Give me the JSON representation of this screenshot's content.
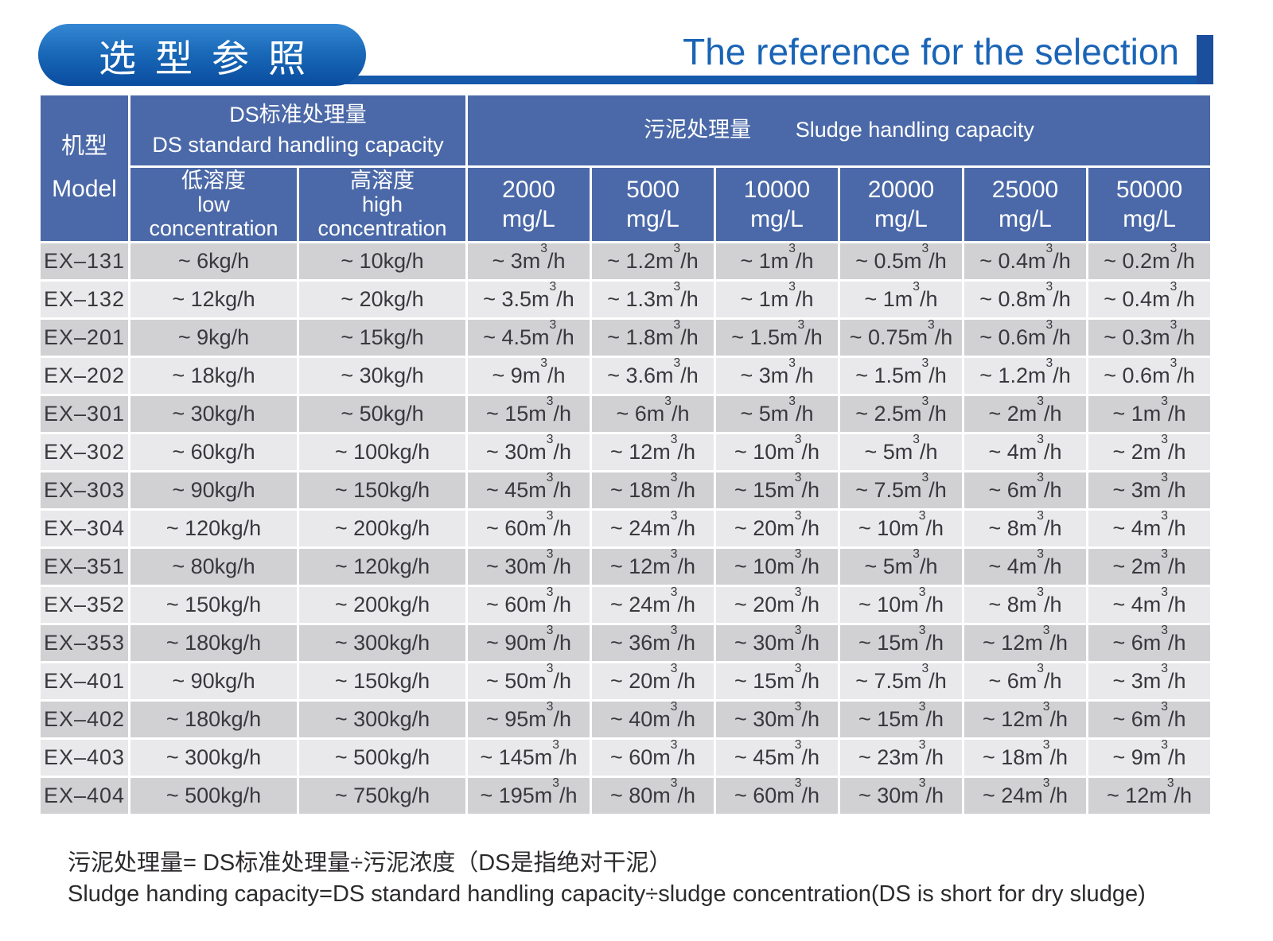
{
  "header": {
    "title_zh": "选型参照",
    "title_en": "The reference for the selection"
  },
  "colors": {
    "table_header_blue": "#4b69a8",
    "row_dark": "#d1d0d3",
    "row_light": "#e9e8ea",
    "title_pill_blue_top": "#3587d3",
    "title_pill_blue_bottom": "#0a4c9f",
    "title_text_blue": "#1a64b6",
    "underline_blue": "#1559ab"
  },
  "table": {
    "header": {
      "model_zh": "机型",
      "model_en": "Model",
      "ds_group_zh": "DS标准处理量",
      "ds_group_en": "DS standard handling capacity",
      "sludge_group_zh": "污泥处理量",
      "sludge_group_en": "Sludge handling capacity",
      "low_zh": "低溶度",
      "low_en_line1": "low",
      "low_en_line2": "concentration",
      "high_zh": "高溶度",
      "high_en_line1": "high",
      "high_en_line2": "concentration",
      "mgl_columns": [
        {
          "value": "2000",
          "unit": "mg/L"
        },
        {
          "value": "5000",
          "unit": "mg/L"
        },
        {
          "value": "10000",
          "unit": "mg/L"
        },
        {
          "value": "20000",
          "unit": "mg/L"
        },
        {
          "value": "25000",
          "unit": "mg/L"
        },
        {
          "value": "50000",
          "unit": "mg/L"
        }
      ]
    },
    "rows": [
      {
        "model": "EX–131",
        "values": [
          "~ 6kg/h",
          "~ 10kg/h",
          "~ 3m³/h",
          "~ 1.2m³/h",
          "~ 1m³/h",
          "~ 0.5m³/h",
          "~ 0.4m³/h",
          "~ 0.2m³/h"
        ]
      },
      {
        "model": "EX–132",
        "values": [
          "~ 12kg/h",
          "~ 20kg/h",
          "~ 3.5m³/h",
          "~ 1.3m³/h",
          "~ 1m³/h",
          "~ 1m³/h",
          "~ 0.8m³/h",
          "~ 0.4m³/h"
        ]
      },
      {
        "model": "EX–201",
        "values": [
          "~ 9kg/h",
          "~ 15kg/h",
          "~ 4.5m³/h",
          "~ 1.8m³/h",
          "~ 1.5m³/h",
          "~ 0.75m³/h",
          "~ 0.6m³/h",
          "~ 0.3m³/h"
        ]
      },
      {
        "model": "EX–202",
        "values": [
          "~ 18kg/h",
          "~ 30kg/h",
          "~ 9m³/h",
          "~ 3.6m³/h",
          "~ 3m³/h",
          "~ 1.5m³/h",
          "~ 1.2m³/h",
          "~ 0.6m³/h"
        ]
      },
      {
        "model": "EX–301",
        "values": [
          "~ 30kg/h",
          "~ 50kg/h",
          "~ 15m³/h",
          "~ 6m³/h",
          "~ 5m³/h",
          "~ 2.5m³/h",
          "~ 2m³/h",
          "~ 1m³/h"
        ]
      },
      {
        "model": "EX–302",
        "values": [
          "~ 60kg/h",
          "~ 100kg/h",
          "~ 30m³/h",
          "~ 12m³/h",
          "~ 10m³/h",
          "~ 5m³/h",
          "~ 4m³/h",
          "~ 2m³/h"
        ]
      },
      {
        "model": "EX–303",
        "values": [
          "~ 90kg/h",
          "~ 150kg/h",
          "~ 45m³/h",
          "~ 18m³/h",
          "~ 15m³/h",
          "~ 7.5m³/h",
          "~ 6m³/h",
          "~ 3m³/h"
        ]
      },
      {
        "model": "EX–304",
        "values": [
          "~ 120kg/h",
          "~ 200kg/h",
          "~ 60m³/h",
          "~ 24m³/h",
          "~ 20m³/h",
          "~ 10m³/h",
          "~ 8m³/h",
          "~ 4m³/h"
        ]
      },
      {
        "model": "EX–351",
        "values": [
          "~ 80kg/h",
          "~ 120kg/h",
          "~ 30m³/h",
          "~ 12m³/h",
          "~ 10m³/h",
          "~ 5m³/h",
          "~ 4m³/h",
          "~ 2m³/h"
        ]
      },
      {
        "model": "EX–352",
        "values": [
          "~ 150kg/h",
          "~ 200kg/h",
          "~ 60m³/h",
          "~ 24m³/h",
          "~ 20m³/h",
          "~ 10m³/h",
          "~ 8m³/h",
          "~ 4m³/h"
        ]
      },
      {
        "model": "EX–353",
        "values": [
          "~ 180kg/h",
          "~ 300kg/h",
          "~ 90m³/h",
          "~ 36m³/h",
          "~ 30m³/h",
          "~ 15m³/h",
          "~ 12m³/h",
          "~ 6m³/h"
        ]
      },
      {
        "model": "EX–401",
        "values": [
          "~ 90kg/h",
          "~ 150kg/h",
          "~ 50m³/h",
          "~ 20m³/h",
          "~ 15m³/h",
          "~ 7.5m³/h",
          "~ 6m³/h",
          "~ 3m³/h"
        ]
      },
      {
        "model": "EX–402",
        "values": [
          "~ 180kg/h",
          "~ 300kg/h",
          "~ 95m³/h",
          "~ 40m³/h",
          "~ 30m³/h",
          "~ 15m³/h",
          "~ 12m³/h",
          "~ 6m³/h"
        ]
      },
      {
        "model": "EX–403",
        "values": [
          "~ 300kg/h",
          "~ 500kg/h",
          "~ 145m³/h",
          "~ 60m³/h",
          "~ 45m³/h",
          "~ 23m³/h",
          "~ 18m³/h",
          "~ 9m³/h"
        ]
      },
      {
        "model": "EX–404",
        "values": [
          "~ 500kg/h",
          "~ 750kg/h",
          "~ 195m³/h",
          "~ 80m³/h",
          "~ 60m³/h",
          "~ 30m³/h",
          "~ 24m³/h",
          "~ 12m³/h"
        ]
      }
    ]
  },
  "notes": {
    "zh": "污泥处理量= DS标准处理量÷污泥浓度（DS是指绝对干泥）",
    "en": "Sludge handing capacity=DS standard handling capacity÷sludge concentration(DS is short for dry sludge)"
  }
}
